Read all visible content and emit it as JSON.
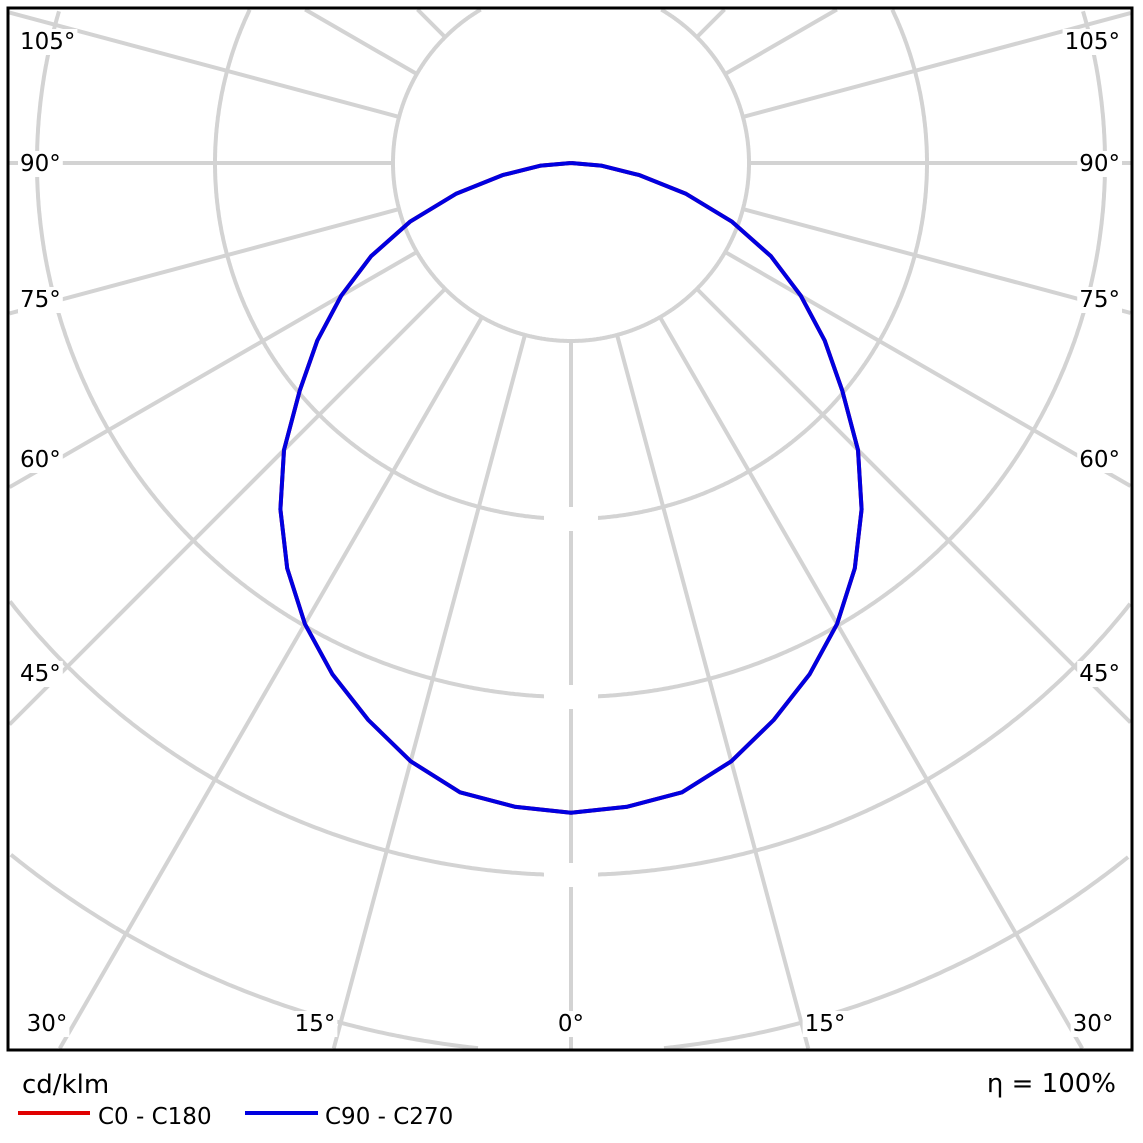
{
  "chart_data": {
    "type": "polar",
    "unit_label": "cd/klm",
    "efficiency_label": "η = 100%",
    "angle_labels": {
      "left": [
        "105°",
        "90°",
        "75°",
        "60°",
        "45°"
      ],
      "right": [
        "105°",
        "90°",
        "75°",
        "60°",
        "45°"
      ],
      "bottom": [
        "30°",
        "15°",
        "0°",
        "15°",
        "30°"
      ]
    },
    "radial_grid_step": 1,
    "radial_tick_labels": [
      "",
      "",
      "",
      "",
      ""
    ],
    "grid": true,
    "legend_position": "bottom-left",
    "gamma_deg": [
      0,
      5,
      10,
      15,
      20,
      25,
      30,
      35,
      40,
      45,
      50,
      55,
      60,
      65,
      70,
      75,
      80,
      85,
      90
    ],
    "series": [
      {
        "name": "C0 - C180",
        "color": "#e00000",
        "values": [
          3.65,
          3.63,
          3.59,
          3.48,
          3.33,
          3.17,
          2.99,
          2.78,
          2.54,
          2.28,
          1.99,
          1.74,
          1.49,
          1.24,
          0.96,
          0.67,
          0.39,
          0.17,
          0.0
        ]
      },
      {
        "name": "C90 - C270",
        "color": "#0000e0",
        "values": [
          3.65,
          3.63,
          3.59,
          3.48,
          3.33,
          3.17,
          2.99,
          2.78,
          2.54,
          2.28,
          1.99,
          1.74,
          1.49,
          1.24,
          0.96,
          0.67,
          0.39,
          0.17,
          0.0
        ]
      }
    ]
  }
}
